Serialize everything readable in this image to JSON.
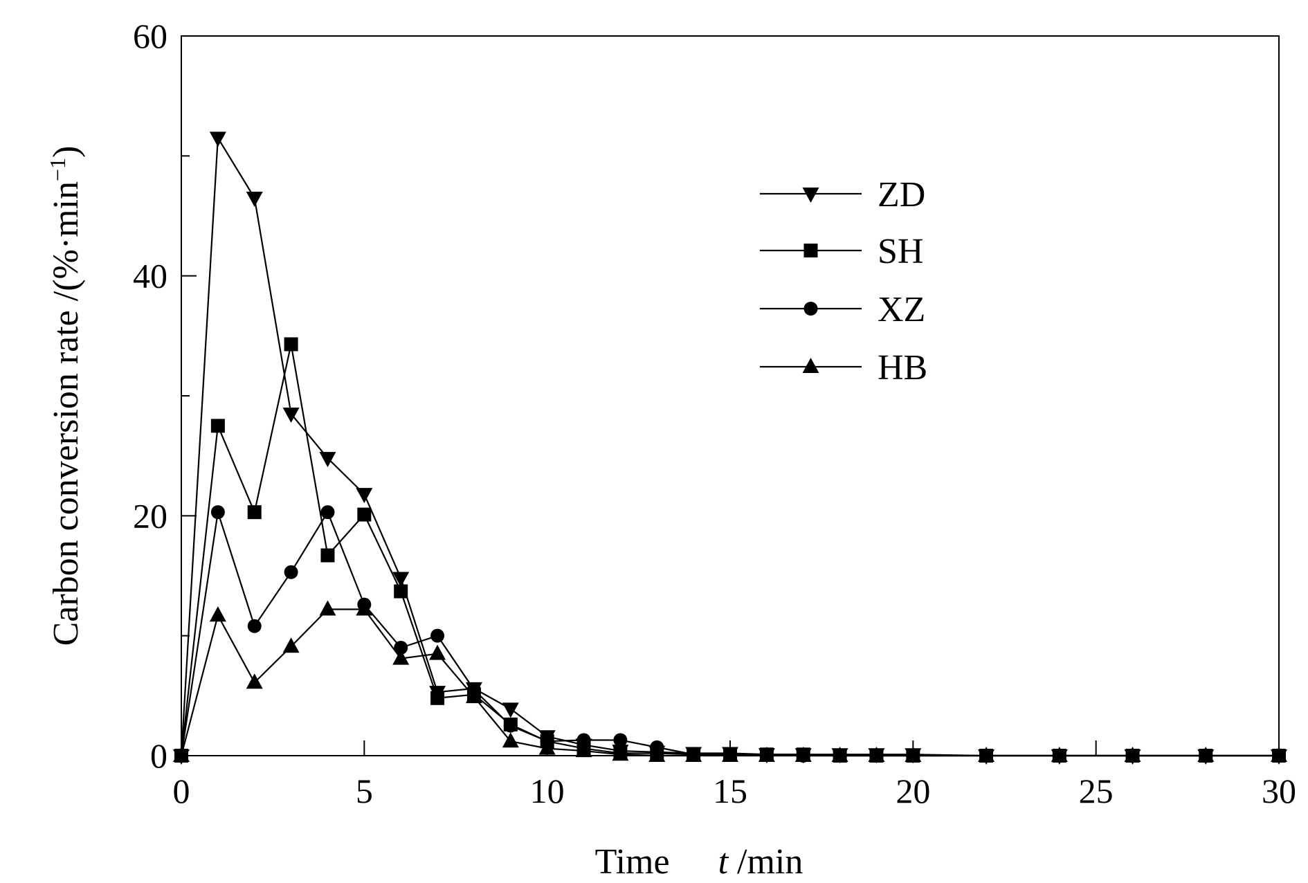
{
  "chart_data": {
    "type": "line",
    "xlabel_main": "Time",
    "xlabel_symbol": "t",
    "xlabel_unit": " /min",
    "ylabel_prefix": "Carbon conversion rate /(%·min",
    "ylabel_sup": "−1",
    "ylabel_suffix": ")",
    "xlim": [
      0,
      30
    ],
    "ylim": [
      0,
      60
    ],
    "xticks": [
      0,
      5,
      10,
      15,
      20,
      25,
      30
    ],
    "xtick_labels": [
      "0",
      "5",
      "10",
      "15",
      "20",
      "25",
      "30"
    ],
    "yticks_major": [
      0,
      20,
      40,
      60
    ],
    "ytick_labels": [
      "0",
      "20",
      "40",
      "60"
    ],
    "yticks_minor": [
      10,
      30,
      50
    ],
    "grid": false,
    "legend_position": "upper-center-right",
    "series": [
      {
        "name": "ZD",
        "marker": "triangle-down",
        "points": [
          [
            0,
            0
          ],
          [
            1,
            51.5
          ],
          [
            2,
            46.5
          ],
          [
            3,
            28.5
          ],
          [
            4,
            24.8
          ],
          [
            5,
            21.8
          ],
          [
            6,
            14.8
          ],
          [
            7,
            5.3
          ],
          [
            8,
            5.6
          ],
          [
            9,
            3.9
          ],
          [
            10,
            1.6
          ],
          [
            11,
            0.9
          ],
          [
            12,
            0.4
          ],
          [
            13,
            0.3
          ],
          [
            14,
            0.2
          ],
          [
            15,
            0.2
          ],
          [
            16,
            0.1
          ],
          [
            17,
            0.1
          ],
          [
            18,
            0.1
          ],
          [
            19,
            0.1
          ],
          [
            20,
            0.1
          ],
          [
            22,
            0
          ],
          [
            24,
            0
          ],
          [
            26,
            0
          ],
          [
            28,
            0
          ],
          [
            30,
            0
          ]
        ]
      },
      {
        "name": "SH",
        "marker": "square",
        "points": [
          [
            0,
            0
          ],
          [
            1,
            27.5
          ],
          [
            2,
            20.3
          ],
          [
            3,
            34.3
          ],
          [
            4,
            16.7
          ],
          [
            5,
            20.1
          ],
          [
            6,
            13.7
          ],
          [
            7,
            4.8
          ],
          [
            8,
            5.1
          ],
          [
            9,
            2.6
          ],
          [
            10,
            1.2
          ],
          [
            11,
            0.6
          ],
          [
            12,
            0.2
          ],
          [
            13,
            0.2
          ],
          [
            14,
            0.1
          ],
          [
            15,
            0.1
          ],
          [
            16,
            0.1
          ],
          [
            17,
            0.1
          ],
          [
            18,
            0
          ],
          [
            19,
            0
          ],
          [
            20,
            0
          ],
          [
            22,
            0
          ],
          [
            24,
            0
          ],
          [
            26,
            0
          ],
          [
            28,
            0
          ],
          [
            30,
            0
          ]
        ]
      },
      {
        "name": "XZ",
        "marker": "circle",
        "points": [
          [
            0,
            0
          ],
          [
            1,
            20.3
          ],
          [
            2,
            10.8
          ],
          [
            3,
            15.3
          ],
          [
            4,
            20.3
          ],
          [
            5,
            12.6
          ],
          [
            6,
            9
          ],
          [
            7,
            10
          ],
          [
            8,
            5.5
          ],
          [
            9,
            2.5
          ],
          [
            10,
            1.2
          ],
          [
            11,
            1.3
          ],
          [
            12,
            1.3
          ],
          [
            13,
            0.7
          ],
          [
            14,
            0.1
          ],
          [
            15,
            0.1
          ],
          [
            16,
            0.1
          ],
          [
            17,
            0
          ],
          [
            18,
            0
          ],
          [
            19,
            0
          ],
          [
            20,
            0
          ],
          [
            22,
            0
          ],
          [
            24,
            0
          ],
          [
            26,
            0
          ],
          [
            28,
            0
          ],
          [
            30,
            0
          ]
        ]
      },
      {
        "name": "HB",
        "marker": "triangle-up",
        "points": [
          [
            0,
            0
          ],
          [
            1,
            11.7
          ],
          [
            2,
            6.1
          ],
          [
            3,
            9.1
          ],
          [
            4,
            12.2
          ],
          [
            5,
            12.2
          ],
          [
            6,
            8.1
          ],
          [
            7,
            8.5
          ],
          [
            8,
            4.9
          ],
          [
            9,
            1.2
          ],
          [
            10,
            0.6
          ],
          [
            11,
            0.4
          ],
          [
            12,
            0.1
          ],
          [
            13,
            0
          ],
          [
            14,
            0
          ],
          [
            15,
            0
          ],
          [
            16,
            0
          ],
          [
            17,
            0
          ],
          [
            18,
            0
          ],
          [
            19,
            0
          ],
          [
            20,
            0
          ],
          [
            22,
            0
          ],
          [
            24,
            0
          ],
          [
            26,
            0
          ],
          [
            28,
            0
          ],
          [
            30,
            0
          ]
        ]
      }
    ]
  }
}
